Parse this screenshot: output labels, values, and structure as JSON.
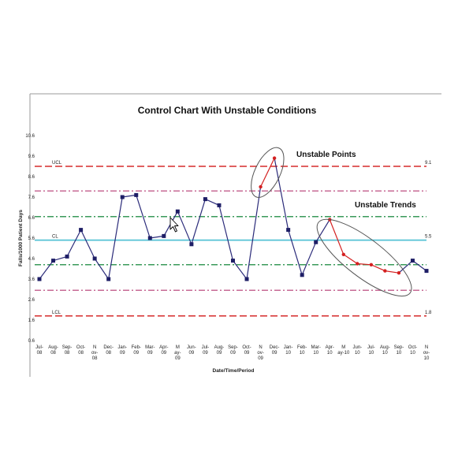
{
  "chart_data": {
    "type": "line",
    "title": "Control Chart With Unstable Conditions",
    "xlabel": "Date/Time/Period",
    "ylabel": "Falls/1000 Patient Days",
    "ylim": [
      0.6,
      10.6
    ],
    "yticks": [
      "10.6",
      "9.6",
      "8.6",
      "7.6",
      "6.6",
      "5.6",
      "4.6",
      "3.6",
      "2.6",
      "1.6",
      "0.6"
    ],
    "x_tick_labels": [
      [
        "Jul-",
        "08"
      ],
      [
        "Aug-",
        "08"
      ],
      [
        "Sep-",
        "08"
      ],
      [
        "Oct-",
        "08"
      ],
      [
        "N",
        "ov-",
        "08"
      ],
      [
        "Dec-",
        "08"
      ],
      [
        "Jan-",
        "09"
      ],
      [
        "Feb-",
        "09"
      ],
      [
        "Mar-",
        "09"
      ],
      [
        "Apr-",
        "09"
      ],
      [
        "M",
        "ay-",
        "09"
      ],
      [
        "Jun-",
        "09"
      ],
      [
        "Jul-",
        "09"
      ],
      [
        "Aug-",
        "09"
      ],
      [
        "Sep-",
        "09"
      ],
      [
        "Oct-",
        "09"
      ],
      [
        "N",
        "ov-",
        "09"
      ],
      [
        "Dec-",
        "09"
      ],
      [
        "Jan-",
        "10"
      ],
      [
        "Feb-",
        "10"
      ],
      [
        "Mar-",
        "10"
      ],
      [
        "Apr-",
        "10"
      ],
      [
        "M",
        "ay-10"
      ],
      [
        "Jun-",
        "10"
      ],
      [
        "Jul-",
        "10"
      ],
      [
        "Aug-",
        "10"
      ],
      [
        "Sep-",
        "10"
      ],
      [
        "Oct-",
        "10"
      ],
      [
        "N",
        "ov-",
        "10"
      ]
    ],
    "series": [
      {
        "name": "Falls",
        "values": [
          3.6,
          4.5,
          4.7,
          6.0,
          4.6,
          3.6,
          7.6,
          7.7,
          5.6,
          5.7,
          6.9,
          5.3,
          7.5,
          7.2,
          4.5,
          3.6,
          8.1,
          9.5,
          6.0,
          3.8,
          5.4,
          6.5,
          4.8,
          4.35,
          4.3,
          4.0,
          3.9,
          4.5,
          4.0
        ],
        "highlight_indices": [
          16,
          17,
          21,
          22,
          23,
          24,
          25,
          26
        ]
      }
    ],
    "reference_lines": [
      {
        "name": "UCL",
        "value": 9.1,
        "left_label": "UCL",
        "right_label": "9.1",
        "color": "#d62b2b",
        "style": "dashed"
      },
      {
        "name": "upper-2sigma",
        "value": 7.9,
        "color": "#c76a95",
        "style": "dashdot"
      },
      {
        "name": "upper-1sigma",
        "value": 6.65,
        "color": "#3a9a5a",
        "style": "dashdot"
      },
      {
        "name": "CL",
        "value": 5.5,
        "left_label": "CL",
        "right_label": "5.5",
        "color": "#54c2d4",
        "style": "solid"
      },
      {
        "name": "lower-1sigma",
        "value": 4.3,
        "color": "#3a9a5a",
        "style": "dashdot"
      },
      {
        "name": "lower-2sigma",
        "value": 3.05,
        "color": "#c76a95",
        "style": "dashdot"
      },
      {
        "name": "LCL",
        "value": 1.8,
        "left_label": "LCL",
        "right_label": "1.8",
        "color": "#d62b2b",
        "style": "dashed"
      }
    ],
    "annotations": [
      {
        "text": "Unstable Points",
        "target_indices": [
          16,
          17
        ]
      },
      {
        "text": "Unstable Trends",
        "target_indices": [
          21,
          22,
          23,
          24,
          25,
          26
        ]
      }
    ],
    "colors": {
      "line": "#2b2b7a",
      "marker": "#1e1e66",
      "highlight": "#d42020",
      "ellipse": "#555555",
      "frame": "#9a9a9a"
    }
  }
}
